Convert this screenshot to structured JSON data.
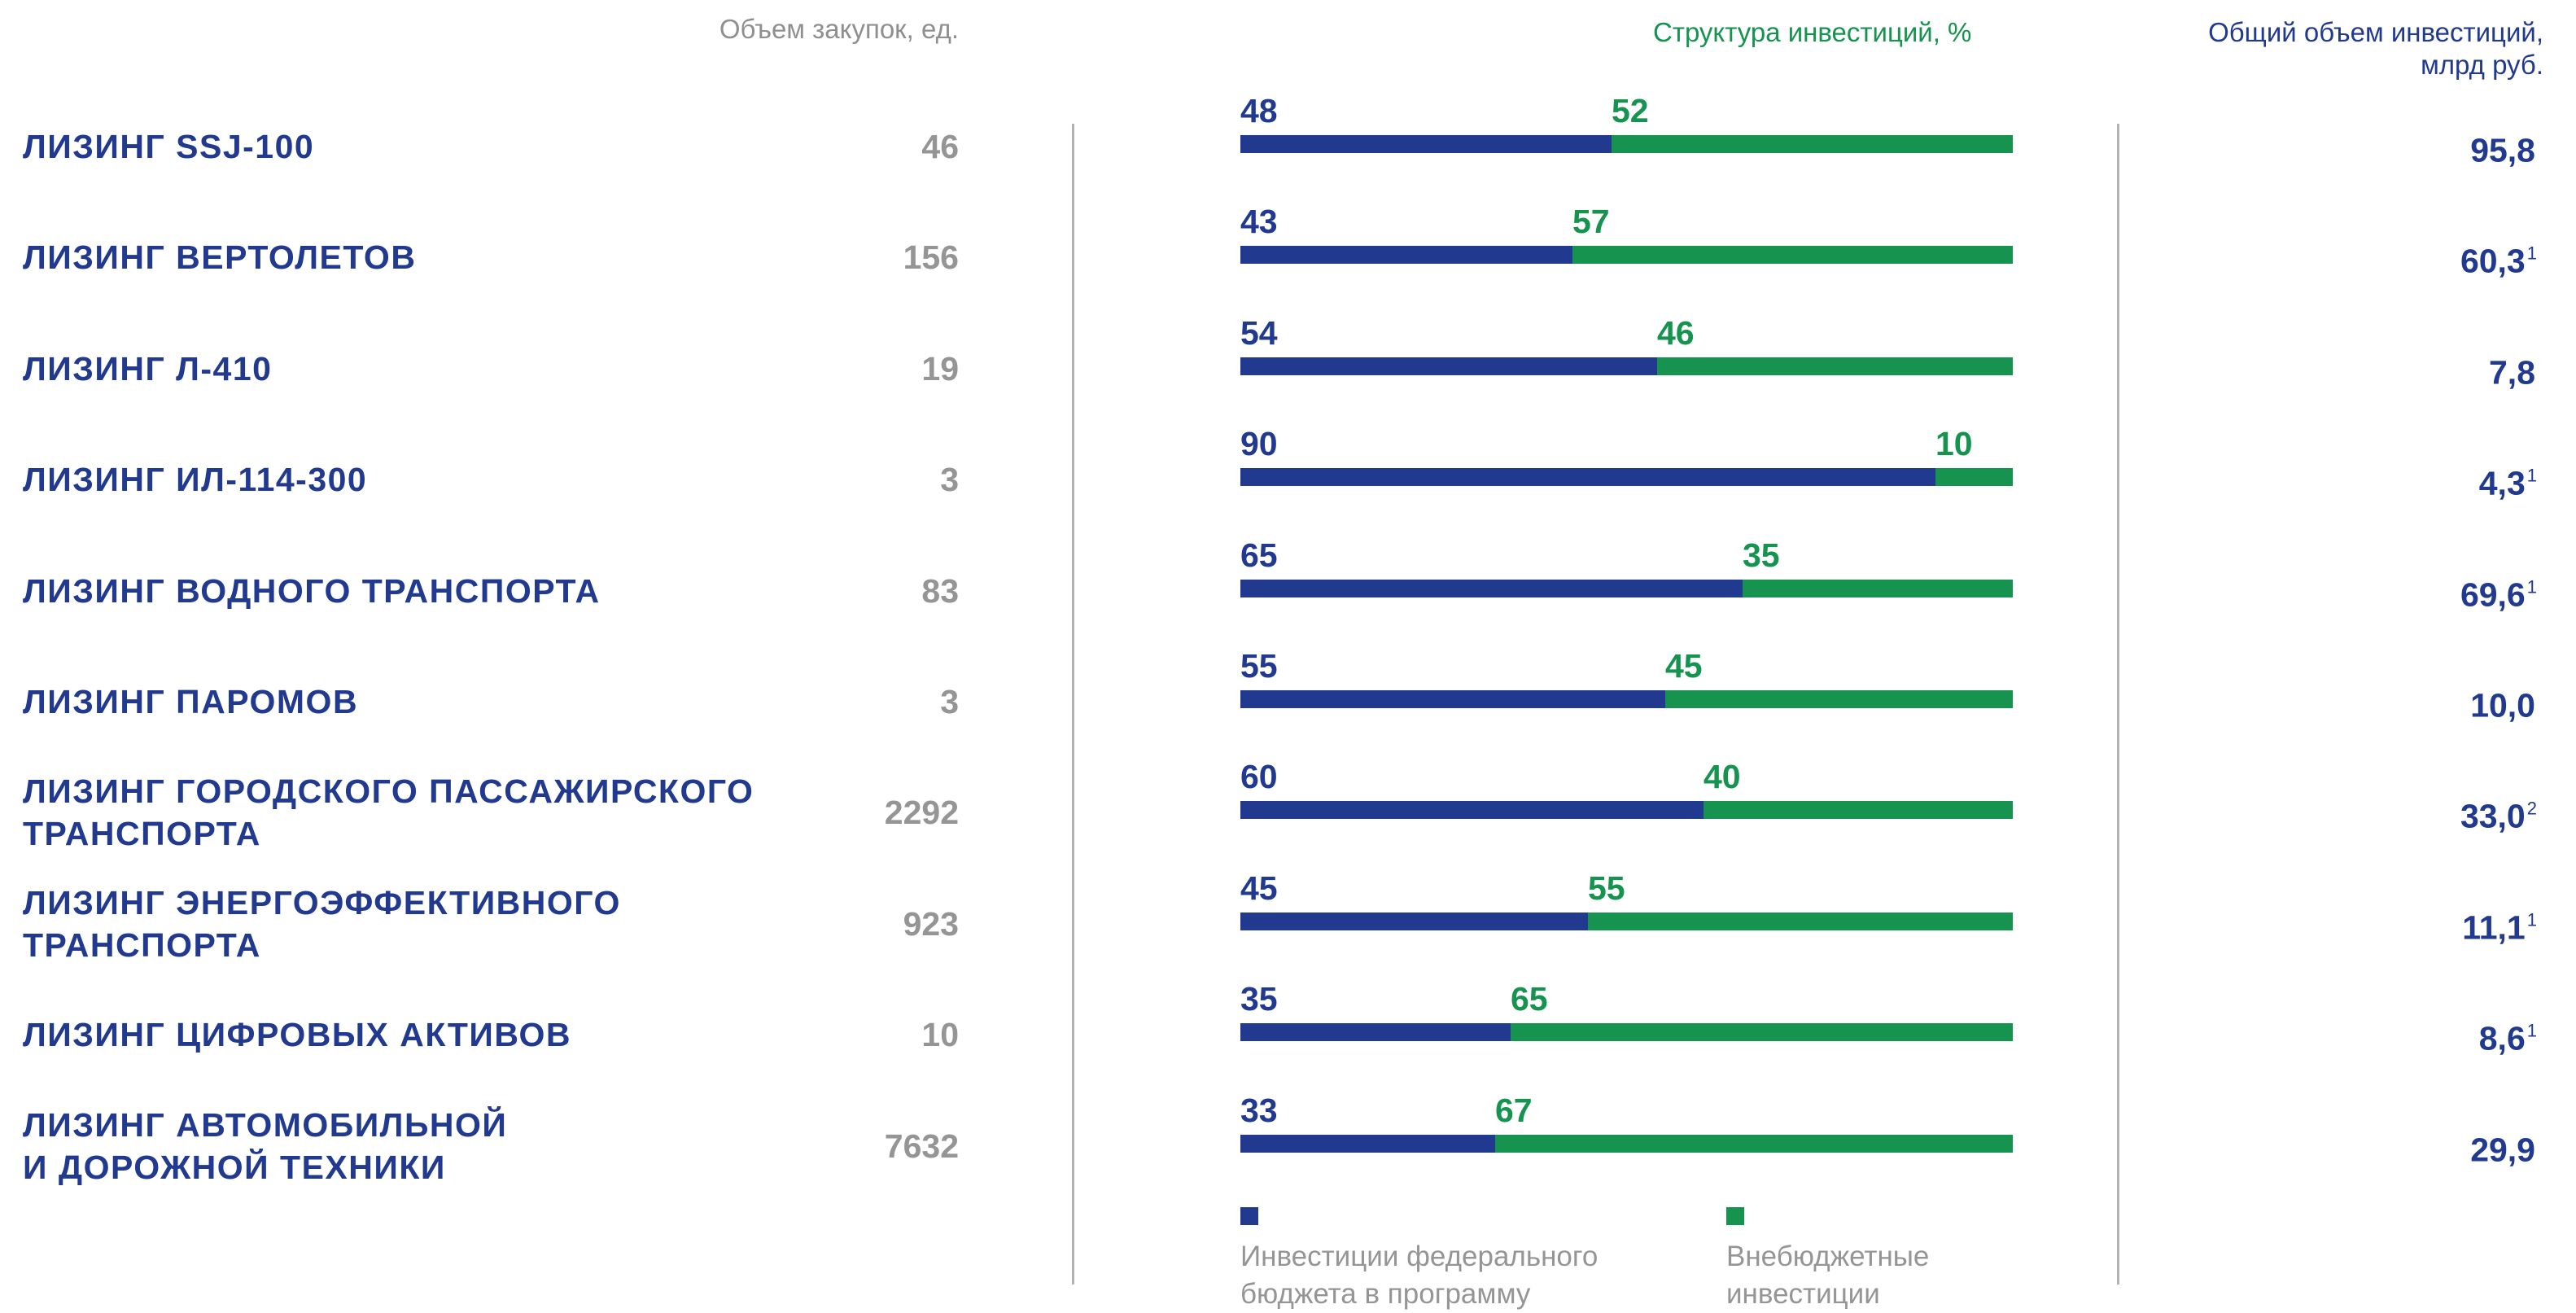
{
  "header": {
    "purchases_label": "Объем закупок, ед.",
    "structure_label": "Структура инвестиций, %",
    "total_label": "Общий объем инвестиций, млрд руб."
  },
  "colors": {
    "federal": "#213a8f",
    "extrabudgetary": "#16944f",
    "muted": "#959595",
    "divider": "#b3b3b3"
  },
  "chart_data": {
    "type": "bar",
    "stacked": true,
    "orientation": "horizontal",
    "title": "Структура инвестиций, %",
    "categories": [
      "ЛИЗИНГ SSJ-100",
      "ЛИЗИНГ ВЕРТОЛЕТОВ",
      "ЛИЗИНГ Л-410",
      "ЛИЗИНГ ИЛ-114-300",
      "ЛИЗИНГ ВОДНОГО ТРАНСПОРТА",
      "ЛИЗИНГ ПАРОМОВ",
      "ЛИЗИНГ ГОРОДСКОГО ПАССАЖИРСКОГО\nТРАНСПОРТА",
      "ЛИЗИНГ ЭНЕРГОЭФФЕКТИВНОГО\nТРАНСПОРТА",
      "ЛИЗИНГ ЦИФРОВЫХ АКТИВОВ",
      "ЛИЗИНГ АВТОМОБИЛЬНОЙ\nИ ДОРОЖНОЙ ТЕХНИКИ"
    ],
    "series": [
      {
        "name": "Инвестиции федерального\nбюджета в программу",
        "values": [
          48,
          43,
          54,
          90,
          65,
          55,
          60,
          45,
          35,
          33
        ]
      },
      {
        "name": "Внебюджетные\nинвестиции",
        "values": [
          52,
          57,
          46,
          10,
          35,
          45,
          40,
          55,
          65,
          67
        ]
      }
    ],
    "xlim": [
      0,
      100
    ],
    "legend": "bottom",
    "grid": false,
    "purchase_volume": [
      "46",
      "156",
      "19",
      "3",
      "83",
      "3",
      "2292",
      "923",
      "10",
      "7632"
    ],
    "total_investment": [
      {
        "value": "95,8",
        "note": ""
      },
      {
        "value": "60,3",
        "note": "1"
      },
      {
        "value": "7,8",
        "note": ""
      },
      {
        "value": "4,3",
        "note": "1"
      },
      {
        "value": "69,6",
        "note": "1"
      },
      {
        "value": "10,0",
        "note": ""
      },
      {
        "value": "33,0",
        "note": "2"
      },
      {
        "value": "11,1",
        "note": "1"
      },
      {
        "value": "8,6",
        "note": "1"
      },
      {
        "value": "29,9",
        "note": ""
      }
    ]
  }
}
